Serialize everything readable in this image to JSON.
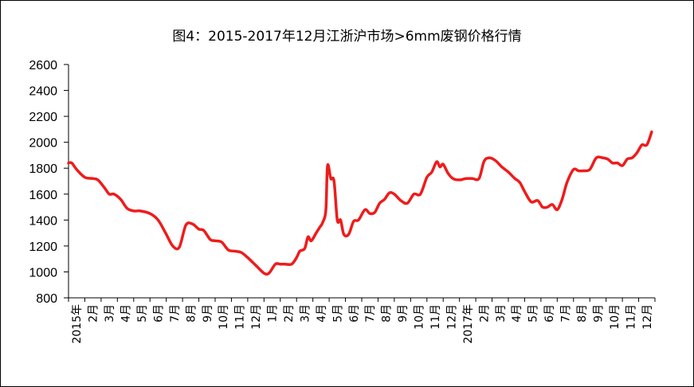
{
  "chart_data": {
    "type": "line",
    "title": "图4：2015-2017年12月江浙沪市场>6mm废钢价格行情",
    "xlabel": "",
    "ylabel": "",
    "ylim": [
      800,
      2600
    ],
    "yticks": [
      800,
      1000,
      1200,
      1400,
      1600,
      1800,
      2000,
      2200,
      2400,
      2600
    ],
    "grid": false,
    "legend": "none",
    "line_color": "#ee1c1c",
    "xticks": [
      "2015年",
      "2月",
      "3月",
      "4月",
      "5月",
      "6月",
      "7月",
      "8月",
      "9月",
      "10月",
      "11月",
      "12月",
      "1月",
      "2月",
      "3月",
      "4月",
      "5月",
      "6月",
      "7月",
      "8月",
      "9月",
      "10月",
      "11月",
      "12月",
      "2017年",
      "2月",
      "3月",
      "4月",
      "5月",
      "6月",
      "7月",
      "8月",
      "9月",
      "10月",
      "11月",
      "12月"
    ],
    "series": [
      {
        "x": [
          0,
          0.2,
          0.5,
          1.0,
          1.5,
          1.8,
          2.2,
          2.5,
          2.8,
          3.2,
          3.6,
          4.0,
          4.4,
          5.0,
          5.5,
          6.0,
          6.4,
          6.8,
          7.2,
          7.6,
          8.0,
          8.3,
          8.7,
          9.0,
          9.4,
          9.8,
          10.2,
          10.6,
          11.0,
          11.5,
          12.0,
          12.3,
          12.7,
          13.0,
          13.3,
          13.7,
          14.0,
          14.2,
          14.5,
          14.7,
          14.9,
          15.2,
          15.4,
          15.6,
          15.8,
          15.9,
          16.1,
          16.3,
          16.5,
          16.7,
          16.9,
          17.2,
          17.5,
          17.8,
          18.2,
          18.5,
          18.8,
          19.1,
          19.4,
          19.7,
          20.0,
          20.4,
          20.8,
          21.2,
          21.6,
          22.0,
          22.3,
          22.6,
          22.8,
          23.0,
          23.3,
          23.6,
          24.0,
          24.4,
          24.8,
          25.2,
          25.5,
          25.8,
          26.2,
          26.6,
          27.0,
          27.4,
          27.7,
          28.0,
          28.4,
          28.8,
          29.1,
          29.4,
          29.7,
          30.0,
          30.3,
          30.6,
          31.0,
          31.3,
          31.6,
          32.0,
          32.4,
          32.8,
          33.1,
          33.4,
          33.7,
          34.0,
          34.3,
          34.6,
          34.9,
          35.2,
          35.5,
          35.8
        ],
        "y": [
          1840,
          1840,
          1790,
          1730,
          1720,
          1710,
          1650,
          1600,
          1600,
          1560,
          1490,
          1470,
          1470,
          1450,
          1400,
          1290,
          1200,
          1190,
          1360,
          1370,
          1330,
          1320,
          1250,
          1240,
          1230,
          1170,
          1160,
          1150,
          1110,
          1050,
          990,
          990,
          1060,
          1060,
          1060,
          1060,
          1110,
          1160,
          1180,
          1270,
          1240,
          1300,
          1340,
          1380,
          1480,
          1820,
          1720,
          1700,
          1400,
          1400,
          1290,
          1290,
          1390,
          1400,
          1480,
          1450,
          1460,
          1530,
          1560,
          1610,
          1600,
          1550,
          1530,
          1600,
          1600,
          1730,
          1770,
          1850,
          1810,
          1830,
          1760,
          1720,
          1710,
          1720,
          1720,
          1720,
          1850,
          1880,
          1860,
          1810,
          1770,
          1720,
          1690,
          1620,
          1540,
          1550,
          1500,
          1500,
          1520,
          1480,
          1560,
          1690,
          1790,
          1780,
          1780,
          1790,
          1880,
          1880,
          1870,
          1840,
          1840,
          1820,
          1870,
          1880,
          1920,
          1980,
          1980,
          2080
        ]
      }
    ]
  }
}
